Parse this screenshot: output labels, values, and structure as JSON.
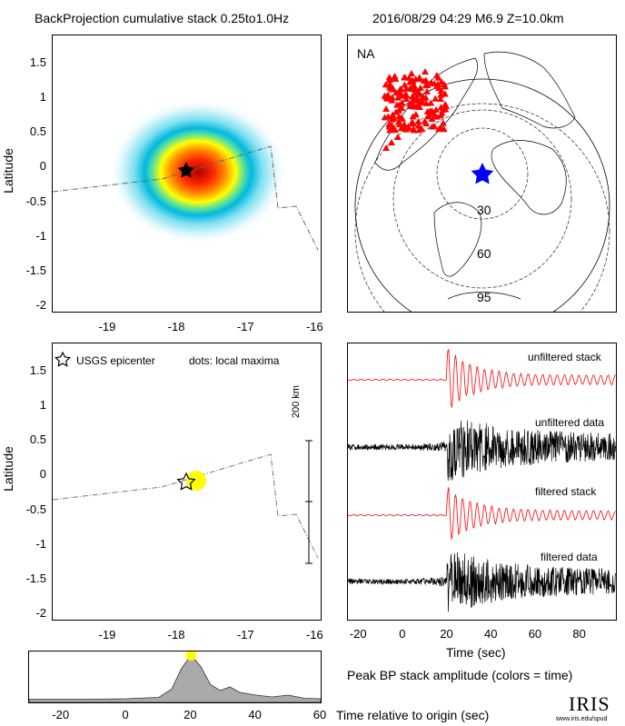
{
  "header": {
    "title": "BackProjection cumulative stack 0.25to1.0Hz",
    "event": "2016/08/29 04:29   M6.9   Z=10.0km"
  },
  "panel_tl": {
    "ylabel": "Latitude"
  },
  "panel_map": {
    "label": "NA",
    "ring_labels": [
      "30",
      "60",
      "95"
    ],
    "colors": {
      "stations": "#ff0000",
      "epicenter": "#0000ff"
    }
  },
  "panel_ml": {
    "ylabel": "Latitude",
    "legend_epicenter": "USGS epicenter",
    "legend_dots": "dots: local maxima",
    "scale_label": "200 km",
    "colors": {
      "maximum": "#ffff00"
    }
  },
  "traces": {
    "labels": [
      "unfiltered stack",
      "unfiltered data",
      "filtered stack",
      "filtered data"
    ],
    "xlabel": "Time (sec)",
    "colors": {
      "stack": "#ff0000",
      "data": "#000000"
    }
  },
  "bottom": {
    "label": "Peak BP stack amplitude (colors = time)",
    "xlabel": "Time relative to origin (sec)",
    "logo": "IRIS",
    "logo_sub": "www.iris.edu/spud"
  },
  "chart_data": [
    {
      "type": "heatmap",
      "id": "cumulative-stack",
      "xlim": [
        -19.8,
        -15.9
      ],
      "ylim": [
        -2.1,
        1.9
      ],
      "xticks": [
        "-19",
        "-18",
        "-17",
        "-16"
      ],
      "yticks": [
        "1.5",
        "1",
        "0.5",
        "0",
        "-0.5",
        "-1",
        "-1.5",
        "-2"
      ],
      "peak": {
        "x": -17.7,
        "y": -0.05
      },
      "epicenter": {
        "x": -17.8,
        "y": -0.08
      }
    },
    {
      "type": "scatter",
      "id": "local-maxima",
      "xlim": [
        -19.8,
        -15.9
      ],
      "ylim": [
        -2.1,
        1.9
      ],
      "xticks": [
        "-19",
        "-18",
        "-17",
        "-16"
      ],
      "yticks": [
        "1.5",
        "1",
        "0.5",
        "0",
        "-0.5",
        "-1",
        "-1.5",
        "-2"
      ],
      "points": [
        {
          "x": -17.7,
          "y": -0.05
        }
      ],
      "epicenter": {
        "x": -17.8,
        "y": -0.08
      }
    },
    {
      "type": "line",
      "id": "seismic-traces",
      "xlim": [
        -25,
        97
      ],
      "xticks": [
        "-20",
        "0",
        "20",
        "40",
        "60",
        "80"
      ]
    },
    {
      "type": "area",
      "id": "peak-bp-amplitude",
      "xlim": [
        -30,
        60
      ],
      "xticks": [
        "-20",
        "0",
        "20",
        "40",
        "60"
      ],
      "x": [
        -30,
        -20,
        -10,
        0,
        10,
        14,
        17,
        20,
        23,
        26,
        29,
        32,
        35,
        40,
        45,
        50,
        55,
        60
      ],
      "values": [
        0.03,
        0.03,
        0.03,
        0.04,
        0.07,
        0.25,
        0.7,
        1.0,
        0.75,
        0.35,
        0.22,
        0.3,
        0.18,
        0.12,
        0.08,
        0.12,
        0.05,
        0.04
      ],
      "peak": {
        "x": 20,
        "y": 1.0
      }
    }
  ]
}
